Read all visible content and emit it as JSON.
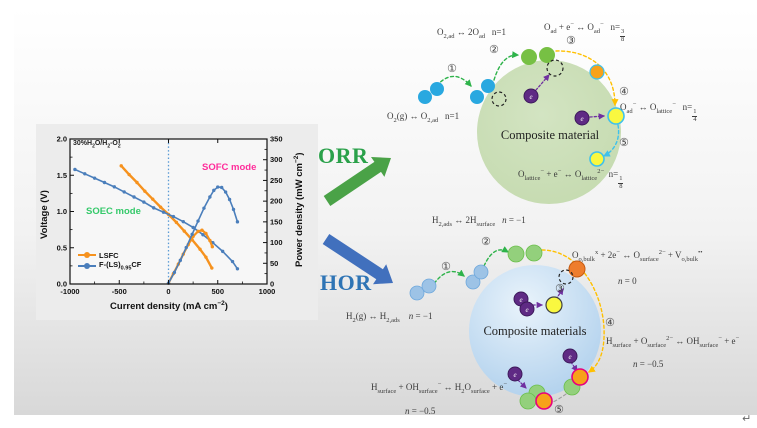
{
  "figure": {
    "return_mark": "↵"
  },
  "electron_label": "e",
  "colors": {
    "orr_green": "#4aa247",
    "hor_blue": "#4170bd",
    "orr_label_green": "#2aa14a",
    "hor_label_blue": "#2e74b5",
    "sphere_green": "#c3d9ad",
    "sphere_blue": "#aecfec",
    "sphere_blue_light": "#e9f3fb",
    "mol_blue": "#29a8e0",
    "mol_lightblue": "#9dc3e6",
    "mol_green": "#77c044",
    "mol_green_light": "#93d07c",
    "mol_orange": "#f7a21a",
    "mol_orange_deep": "#ee7d2d",
    "mol_yellow": "#f9f840",
    "mol_purple": "#5f2a84",
    "ring_cyan": "#3ec1ec",
    "ring_magenta": "#e6007e",
    "arc_green": "#2eb34a",
    "arc_yellow": "#ffc000",
    "arc_purple": "#7030a0",
    "arc_gray": "#9e9e9e",
    "vacancy_black": "#222222",
    "chart_orange": "#f6921e",
    "chart_blue": "#4a7ebb",
    "sofc_magenta": "#ff2d9b",
    "soec_green": "#35c96a",
    "zero_line_blue": "#5b9bd5",
    "figure_bg_bottom": "#d8d8d8"
  },
  "chart_data": {
    "type": "line",
    "grid": false,
    "legend_position": "lower left",
    "condition_label_html": "30%H<sub>2</sub>O/H<sub>2</sub>-O<sub>2</sub>",
    "sofc_label": "SOFC mode",
    "soec_label": "SOEC mode",
    "xlabel_html": "Current density (mA cm<sup>−2</sup>)",
    "ylabel_left": "Voltage (V)",
    "ylabel_right_html": "Power density (mW cm<sup>−2</sup>)",
    "xlim": [
      -1000,
      1000
    ],
    "ylim_left": [
      0,
      2
    ],
    "ylim_right": [
      0,
      350
    ],
    "xticks": [
      -1000,
      -500,
      0,
      500,
      1000
    ],
    "yticks_left": [
      "0.0",
      "0.5",
      "1.0",
      "1.5",
      "2.0"
    ],
    "yticks_right": [
      0,
      50,
      100,
      150,
      200,
      250,
      300,
      350
    ],
    "legend": [
      {
        "label_html": "LSFC",
        "color": "#f6921e"
      },
      {
        "label_html": "F-(LS)<sub>0.95</sub>CF",
        "color": "#4a7ebb"
      }
    ],
    "series": [
      {
        "name": "LSFC voltage",
        "axis": "left",
        "color": "#f6921e",
        "lw": 2.4,
        "x": [
          -480,
          -400,
          -320,
          -240,
          -160,
          -80,
          0,
          80,
          160,
          240,
          320,
          380,
          440
        ],
        "y": [
          1.63,
          1.51,
          1.4,
          1.28,
          1.17,
          1.06,
          0.96,
          0.85,
          0.73,
          0.61,
          0.48,
          0.37,
          0.22
        ]
      },
      {
        "name": "F-(LS)0.95CF voltage",
        "axis": "left",
        "color": "#4a7ebb",
        "lw": 1.6,
        "x": [
          -950,
          -850,
          -750,
          -650,
          -550,
          -450,
          -350,
          -250,
          -150,
          -50,
          50,
          150,
          250,
          350,
          450,
          550,
          650,
          700
        ],
        "y": [
          1.58,
          1.52,
          1.46,
          1.4,
          1.34,
          1.27,
          1.2,
          1.13,
          1.05,
          0.99,
          0.93,
          0.86,
          0.78,
          0.68,
          0.57,
          0.45,
          0.31,
          0.21
        ]
      },
      {
        "name": "LSFC power density",
        "axis": "right",
        "color": "#f6921e",
        "lw": 2.2,
        "x": [
          0,
          50,
          100,
          150,
          200,
          250,
          300,
          340,
          380,
          420,
          445
        ],
        "y": [
          2,
          25,
          48,
          72,
          95,
          115,
          127,
          130,
          122,
          105,
          90
        ]
      },
      {
        "name": "F-(LS)0.95CF power density",
        "axis": "right",
        "color": "#4a7ebb",
        "lw": 1.6,
        "x": [
          0,
          60,
          120,
          180,
          240,
          300,
          360,
          420,
          460,
          500,
          540,
          580,
          620,
          660,
          700
        ],
        "y": [
          2,
          28,
          57,
          88,
          120,
          152,
          183,
          210,
          226,
          234,
          233,
          222,
          204,
          180,
          150
        ]
      }
    ]
  },
  "orr": {
    "label": "ORR",
    "sphere_label": "Composite material",
    "steps": [
      "①",
      "②",
      "③",
      "④",
      "⑤"
    ],
    "eq1": "O<sub>2,ad</sub> ↔ 2O<sub>ad</sub>&nbsp;&nbsp;&nbsp;n=1",
    "eq2": "O<sub>ad</sub> + e<sup>−</sup> ↔ O<sub>ad</sub><sup>−</sup>&nbsp;&nbsp;&nbsp;n=<span class=\"frac\"><span>3</span><span>8</span></span>",
    "eq3": "O<sub>2</sub>(g) ↔ O<sub>2,ad</sub>&nbsp;&nbsp;&nbsp;n=1",
    "eq4": "O<sub>ad</sub><sup>−</sup> ↔ O<sub>lattice</sub><sup>−</sup>&nbsp;&nbsp;&nbsp;n=<span class=\"frac\"><span>1</span><span>4</span></span>",
    "eq5": "O<sub>lattice</sub><sup>−</sup> + e<sup>−</sup> ↔ O<sub>lattice</sub><sup>2−</sup>&nbsp;&nbsp;n=<span class=\"frac\"><span>1</span><span>8</span></span>"
  },
  "hor": {
    "label": "HOR",
    "sphere_label": "Composite materials",
    "steps": [
      "①",
      "②",
      "③",
      "④",
      "⑤"
    ],
    "eq1": "H<sub>2,ads</sub> ↔ 2H<sub>surface</sub>&nbsp;&nbsp;&nbsp;<i>n</i> = −1",
    "eq2": "O<sub>o,bulk</sub><sup>x</sup> + 2e<sup>−</sup> ↔ O<sub>surface</sub><sup>2−</sup> + V<sub>o,bulk</sub><sup>••</sup>",
    "eq2_n": "<i>n</i> = 0",
    "eq3": "H<sub>2</sub>(g) ↔ H<sub>2,ads</sub>&nbsp;&nbsp;&nbsp;&nbsp;<i>n</i> = −1",
    "eq4": "H<sub>surface</sub> + O<sub>surface</sub><sup>2−</sup> ↔ OH<sub>surface</sub><sup>−</sup> + e<sup>−</sup>",
    "eq4_n": "<i>n</i> = −0.5",
    "eq5": "H<sub>surface</sub> + OH<sub>surface</sub><sup>−</sup> ↔ H<sub>2</sub>O<sub>surface</sub> + e<sup>−</sup>",
    "eq5_n": "<i>n</i> = −0.5"
  }
}
